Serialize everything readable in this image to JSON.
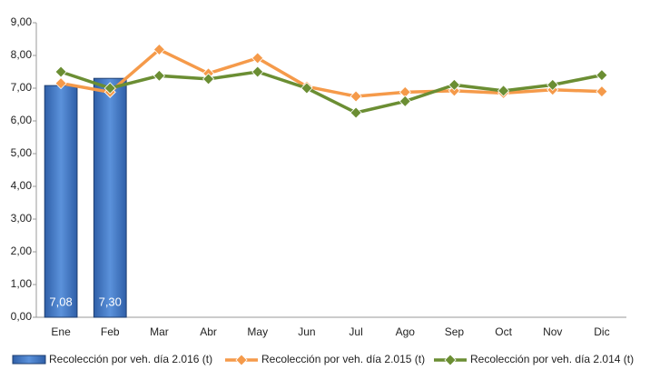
{
  "chart_data": {
    "type": "combo",
    "categories": [
      "Ene",
      "Feb",
      "Mar",
      "Abr",
      "May",
      "Jun",
      "Jul",
      "Ago",
      "Sep",
      "Oct",
      "Nov",
      "Dic"
    ],
    "series": [
      {
        "name": "Recolección por veh. día 2.016 (t)",
        "type": "bar",
        "color": "#4a7fc8",
        "values": [
          7.08,
          7.3,
          null,
          null,
          null,
          null,
          null,
          null,
          null,
          null,
          null,
          null
        ],
        "value_labels": [
          "7,08",
          "7,30",
          null,
          null,
          null,
          null,
          null,
          null,
          null,
          null,
          null,
          null
        ]
      },
      {
        "name": "Recolección por veh. día 2.015 (t)",
        "type": "line",
        "color": "#f59a4a",
        "values": [
          7.15,
          6.88,
          8.18,
          7.45,
          7.92,
          7.05,
          6.75,
          6.88,
          6.92,
          6.85,
          6.95,
          6.9
        ]
      },
      {
        "name": "Recolección por veh. día 2.014 (t)",
        "type": "line",
        "color": "#6b8e33",
        "values": [
          7.5,
          7.0,
          7.38,
          7.28,
          7.5,
          7.0,
          6.25,
          6.6,
          7.1,
          6.92,
          7.1,
          7.4
        ]
      }
    ],
    "ylim": [
      0,
      9
    ],
    "yticks": [
      {
        "value": 0,
        "label": "0,00"
      },
      {
        "value": 1,
        "label": "1,00"
      },
      {
        "value": 2,
        "label": "2,00"
      },
      {
        "value": 3,
        "label": "3,00"
      },
      {
        "value": 4,
        "label": "4,00"
      },
      {
        "value": 5,
        "label": "5,00"
      },
      {
        "value": 6,
        "label": "6,00"
      },
      {
        "value": 7,
        "label": "7,00"
      },
      {
        "value": 8,
        "label": "8,00"
      },
      {
        "value": 9,
        "label": "9,00"
      }
    ],
    "legend": "bottom",
    "grid": false
  }
}
